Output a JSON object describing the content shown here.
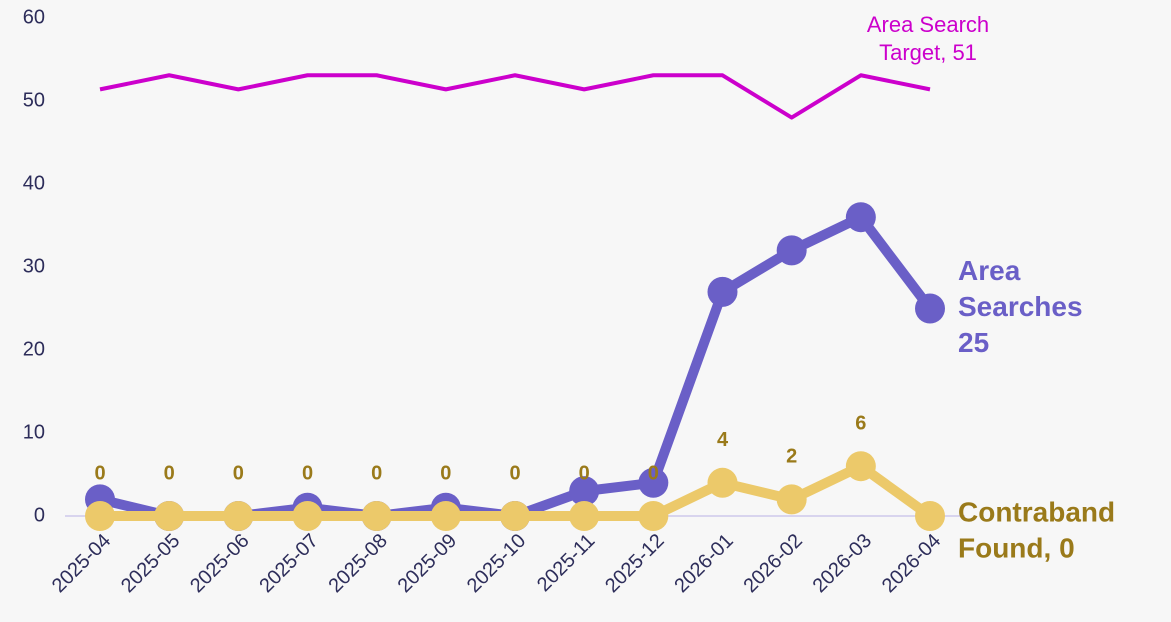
{
  "chart_data": {
    "type": "line",
    "categories": [
      "2025-04",
      "2025-05",
      "2025-06",
      "2025-07",
      "2025-08",
      "2025-09",
      "2025-10",
      "2025-11",
      "2025-12",
      "2026-01",
      "2026-02",
      "2026-03",
      "2026-04"
    ],
    "ylim": [
      0,
      60
    ],
    "yticks": [
      0,
      10,
      20,
      30,
      40,
      50,
      60
    ],
    "series": [
      {
        "name": "Area Search Target",
        "color": "#cc00cc",
        "values": [
          51.4,
          53.1,
          51.4,
          53.1,
          53.1,
          51.4,
          53.1,
          51.4,
          53.1,
          53.1,
          48,
          53.1,
          51.4
        ],
        "end_label": [
          "Area Search",
          "Target, 51"
        ],
        "width": 4,
        "markers": false
      },
      {
        "name": "Area Searches",
        "color": "#6a5fc7",
        "values": [
          2,
          0,
          0,
          1,
          0,
          1,
          0,
          3,
          4,
          27,
          32,
          36,
          25
        ],
        "end_label": [
          "Area",
          "Searches",
          "25"
        ],
        "width": 10,
        "markers": true
      },
      {
        "name": "Contraband Found",
        "color": "#ecc96a",
        "label_color": "#9a7a1a",
        "values": [
          0,
          0,
          0,
          0,
          0,
          0,
          0,
          0,
          0,
          4,
          2,
          6,
          0
        ],
        "end_label": [
          "Contraband",
          "Found, 0"
        ],
        "width": 10,
        "markers": true,
        "data_labels": true
      }
    ]
  }
}
